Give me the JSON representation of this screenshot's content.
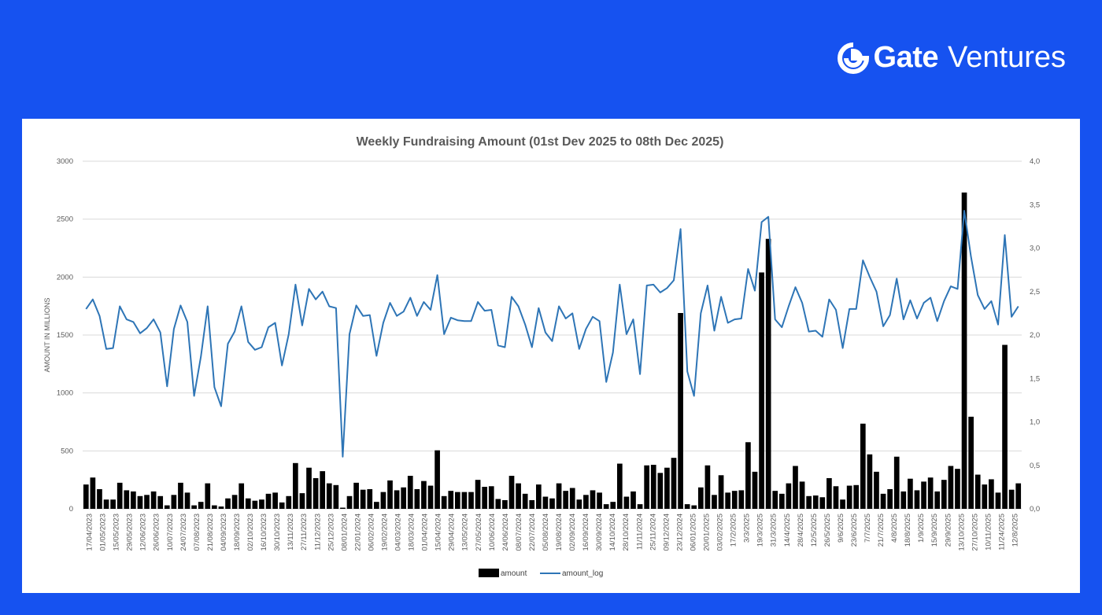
{
  "brand": {
    "name_bold": "Gate",
    "name_light": "Ventures"
  },
  "colors": {
    "background": "#1652f0",
    "bar": "#000000",
    "line": "#2e75b6",
    "grid": "#d9d9d9"
  },
  "chart_data": {
    "type": "bar",
    "title": "Weekly Fundraising Amount (01st Dev 2025 to 08th Dec 2025)",
    "ylabel": "AMOUNT IN MILLIONS",
    "ylim": [
      0,
      3000
    ],
    "y_ticks": [
      "0",
      "500",
      "1000",
      "1500",
      "2000",
      "2500",
      "3000"
    ],
    "y2lim": [
      0,
      4
    ],
    "y2_ticks": [
      "0,0",
      "0,5",
      "1,0",
      "1,5",
      "2,0",
      "2,5",
      "3,0",
      "3,5",
      "4,0"
    ],
    "grid": true,
    "legend_position": "bottom",
    "x_labels": [
      "17/04/2023",
      "01/05/2023",
      "15/05/2023",
      "29/05/2023",
      "12/06/2023",
      "26/06/2023",
      "10/07/2023",
      "24/07/2023",
      "07/08/2023",
      "21/08/2023",
      "04/09/2023",
      "18/09/2023",
      "02/10/2023",
      "16/10/2023",
      "30/10/2023",
      "13/11/2023",
      "27/11/2023",
      "11/12/2023",
      "25/12/2023",
      "08/01/2024",
      "22/01/2024",
      "06/02/2024",
      "19/02/2024",
      "04/03/2024",
      "18/03/2024",
      "01/04/2024",
      "15/04/2024",
      "29/04/2024",
      "13/05/2024",
      "27/05/2024",
      "10/06/2024",
      "24/06/2024",
      "08/07/2024",
      "22/07/2024",
      "05/08/2024",
      "19/08/2024",
      "02/09/2024",
      "16/09/2024",
      "30/09/2024",
      "14/10/2024",
      "28/10/2024",
      "11/11/2024",
      "25/11/2024",
      "09/12/2024",
      "23/12/2024",
      "06/01/2025",
      "20/01/2025",
      "03/02/2025",
      "17/2/2025",
      "3/3/2025",
      "19/3/2025",
      "31/3/2025",
      "14/4/2025",
      "28/4/2025",
      "12/5/2025",
      "26/5/2025",
      "9/6/2025",
      "23/6/2025",
      "7/7/2025",
      "21/7/2025",
      "4/8/2025",
      "18/8/2025",
      "1/9/2025",
      "15/9/2025",
      "29/9/2025",
      "13/10/2025",
      "27/10/2025",
      "10/11/2025",
      "11/24/2025",
      "12/8/2025"
    ],
    "series": [
      {
        "name": "amount",
        "type": "bar",
        "values": [
          210,
          270,
          170,
          80,
          80,
          225,
          160,
          150,
          110,
          120,
          150,
          110,
          30,
          120,
          225,
          140,
          30,
          60,
          220,
          30,
          20,
          90,
          120,
          220,
          90,
          70,
          80,
          130,
          140,
          55,
          110,
          395,
          135,
          355,
          265,
          325,
          220,
          205,
          10,
          110,
          225,
          165,
          170,
          60,
          145,
          245,
          160,
          185,
          285,
          170,
          240,
          200,
          505,
          110,
          155,
          145,
          145,
          145,
          250,
          190,
          195,
          85,
          75,
          285,
          220,
          130,
          75,
          210,
          105,
          90,
          220,
          155,
          180,
          80,
          120,
          160,
          140,
          40,
          60,
          390,
          105,
          150,
          40,
          375,
          380,
          310,
          355,
          440,
          1690,
          40,
          30,
          185,
          375,
          120,
          290,
          140,
          155,
          160,
          575,
          320,
          2040,
          2330,
          155,
          130,
          220,
          370,
          235,
          110,
          115,
          100,
          265,
          195,
          80,
          200,
          205,
          735,
          470,
          320,
          130,
          170,
          450,
          150,
          260,
          160,
          235,
          270,
          150,
          250,
          370,
          345,
          2730,
          795,
          295,
          210,
          255,
          140,
          1415,
          165,
          220
        ]
      },
      {
        "name": "amount_log",
        "type": "line",
        "axis": "right",
        "values": [
          2.3,
          2.41,
          2.22,
          1.84,
          1.85,
          2.33,
          2.18,
          2.15,
          2.02,
          2.08,
          2.18,
          2.03,
          1.41,
          2.07,
          2.34,
          2.15,
          1.3,
          1.75,
          2.33,
          1.4,
          1.18,
          1.9,
          2.04,
          2.33,
          1.92,
          1.83,
          1.86,
          2.09,
          2.14,
          1.65,
          2.01,
          2.58,
          2.11,
          2.53,
          2.41,
          2.5,
          2.33,
          2.31,
          0.6,
          2.01,
          2.34,
          2.22,
          2.23,
          1.76,
          2.14,
          2.37,
          2.22,
          2.27,
          2.43,
          2.22,
          2.38,
          2.29,
          2.69,
          2.01,
          2.2,
          2.17,
          2.16,
          2.16,
          2.38,
          2.28,
          2.29,
          1.88,
          1.86,
          2.44,
          2.33,
          2.12,
          1.86,
          2.31,
          2.03,
          1.93,
          2.33,
          2.19,
          2.25,
          1.84,
          2.07,
          2.21,
          2.16,
          1.46,
          1.8,
          2.58,
          2.01,
          2.18,
          1.55,
          2.57,
          2.58,
          2.49,
          2.54,
          2.63,
          3.22,
          1.58,
          1.3,
          2.25,
          2.57,
          2.05,
          2.44,
          2.14,
          2.18,
          2.19,
          2.76,
          2.51,
          3.3,
          3.36,
          2.18,
          2.09,
          2.33,
          2.55,
          2.37,
          2.04,
          2.05,
          1.98,
          2.41,
          2.29,
          1.85,
          2.3,
          2.3,
          2.86,
          2.67,
          2.5,
          2.1,
          2.23,
          2.65,
          2.18,
          2.4,
          2.19,
          2.37,
          2.43,
          2.16,
          2.39,
          2.56,
          2.53,
          3.43,
          2.9,
          2.46,
          2.3,
          2.39,
          2.12,
          3.15,
          2.21,
          2.33
        ]
      }
    ]
  }
}
